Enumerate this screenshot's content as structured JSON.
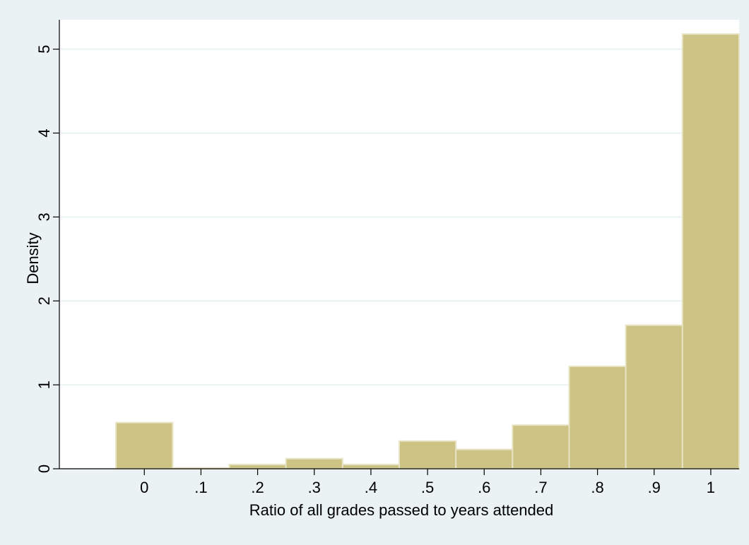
{
  "colors": {
    "page_background": "#eaf2f3",
    "plot_background": "#ffffff",
    "bar_fill": "#cdc385",
    "bar_stroke": "#e8e3c2",
    "grid": "#eaf2f3",
    "axis": "#000000"
  },
  "chart_data": {
    "type": "bar",
    "title": "",
    "xlabel": "Ratio of all grades passed to years attended",
    "ylabel": "Density",
    "bin_width": 0.1,
    "xlim": [
      -0.15,
      1.05
    ],
    "ylim": [
      0,
      5.35
    ],
    "grid": true,
    "x_ticks": [
      0,
      0.1,
      0.2,
      0.3,
      0.4,
      0.5,
      0.6,
      0.7,
      0.8,
      0.9,
      1
    ],
    "x_tick_labels": [
      "0",
      ".1",
      ".2",
      ".3",
      ".4",
      ".5",
      ".6",
      ".7",
      ".8",
      ".9",
      "1"
    ],
    "y_ticks": [
      0,
      1,
      2,
      3,
      4,
      5
    ],
    "y_tick_labels": [
      "0",
      "1",
      "2",
      "3",
      "4",
      "5"
    ],
    "categories": [
      "0",
      ".1",
      ".2",
      ".3",
      ".4",
      ".5",
      ".6",
      ".7",
      ".8",
      ".9",
      "1"
    ],
    "bin_centers": [
      0,
      0.1,
      0.2,
      0.3,
      0.4,
      0.5,
      0.6,
      0.7,
      0.8,
      0.9,
      1
    ],
    "values": [
      0.55,
      0.01,
      0.05,
      0.12,
      0.05,
      0.33,
      0.23,
      0.52,
      1.22,
      1.71,
      5.18
    ]
  }
}
